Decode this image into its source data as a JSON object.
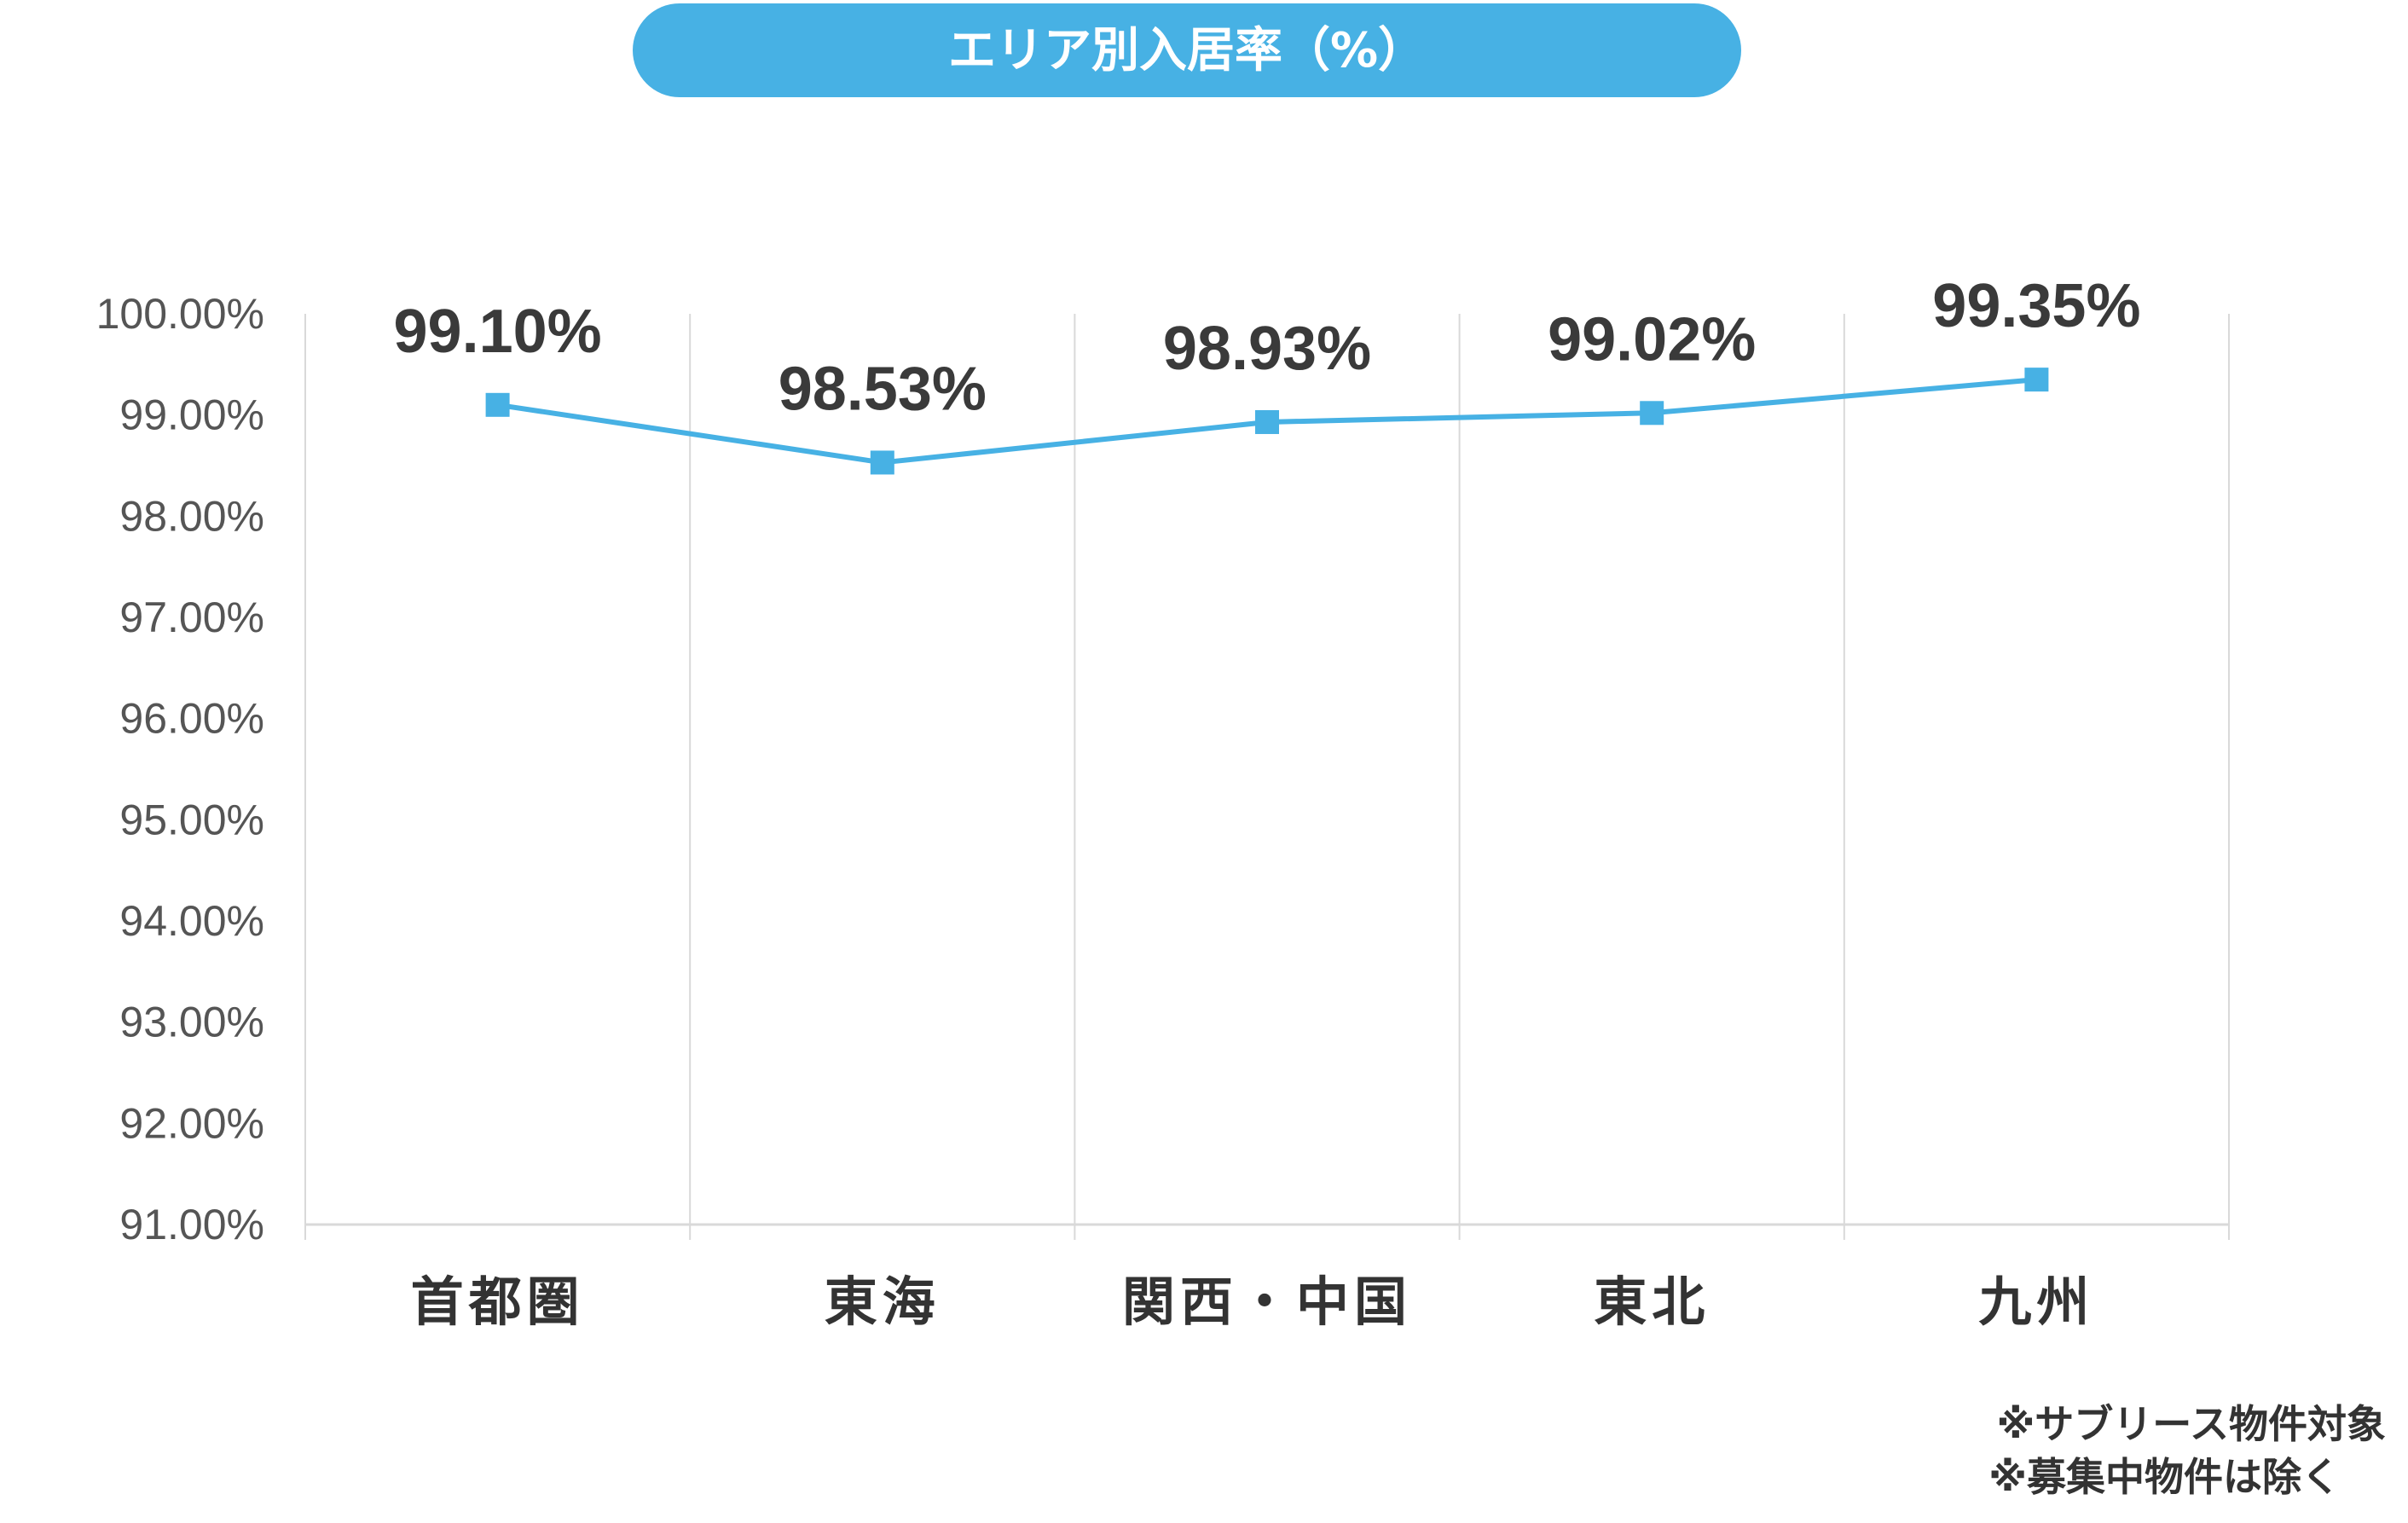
{
  "title": "エリア別入居率（%）",
  "colors": {
    "accent": "#47b1e4",
    "text": "#333333",
    "grid": "#d9d9d9"
  },
  "chart_data": {
    "type": "line",
    "title": "エリア別入居率（%）",
    "categories": [
      "首都圏",
      "東海",
      "関西・中国",
      "東北",
      "九州"
    ],
    "series": [
      {
        "values": [
          99.1,
          98.53,
          98.93,
          99.02,
          99.35
        ],
        "color": "#47b1e4",
        "marker": "square"
      }
    ],
    "data_labels": [
      "99.10%",
      "98.53%",
      "98.93%",
      "99.02%",
      "99.35%"
    ],
    "y_ticks": [
      "91.00%",
      "92.00%",
      "93.00%",
      "94.00%",
      "95.00%",
      "96.00%",
      "97.00%",
      "98.00%",
      "99.00%",
      "100.00%"
    ],
    "ylim": [
      91,
      100
    ],
    "xlabel": "",
    "ylabel": "",
    "grid": {
      "vertical": true,
      "horizontal": false
    },
    "legend": "none"
  },
  "notes": [
    "※サブリース物件対象",
    "※募集中物件は除く"
  ]
}
